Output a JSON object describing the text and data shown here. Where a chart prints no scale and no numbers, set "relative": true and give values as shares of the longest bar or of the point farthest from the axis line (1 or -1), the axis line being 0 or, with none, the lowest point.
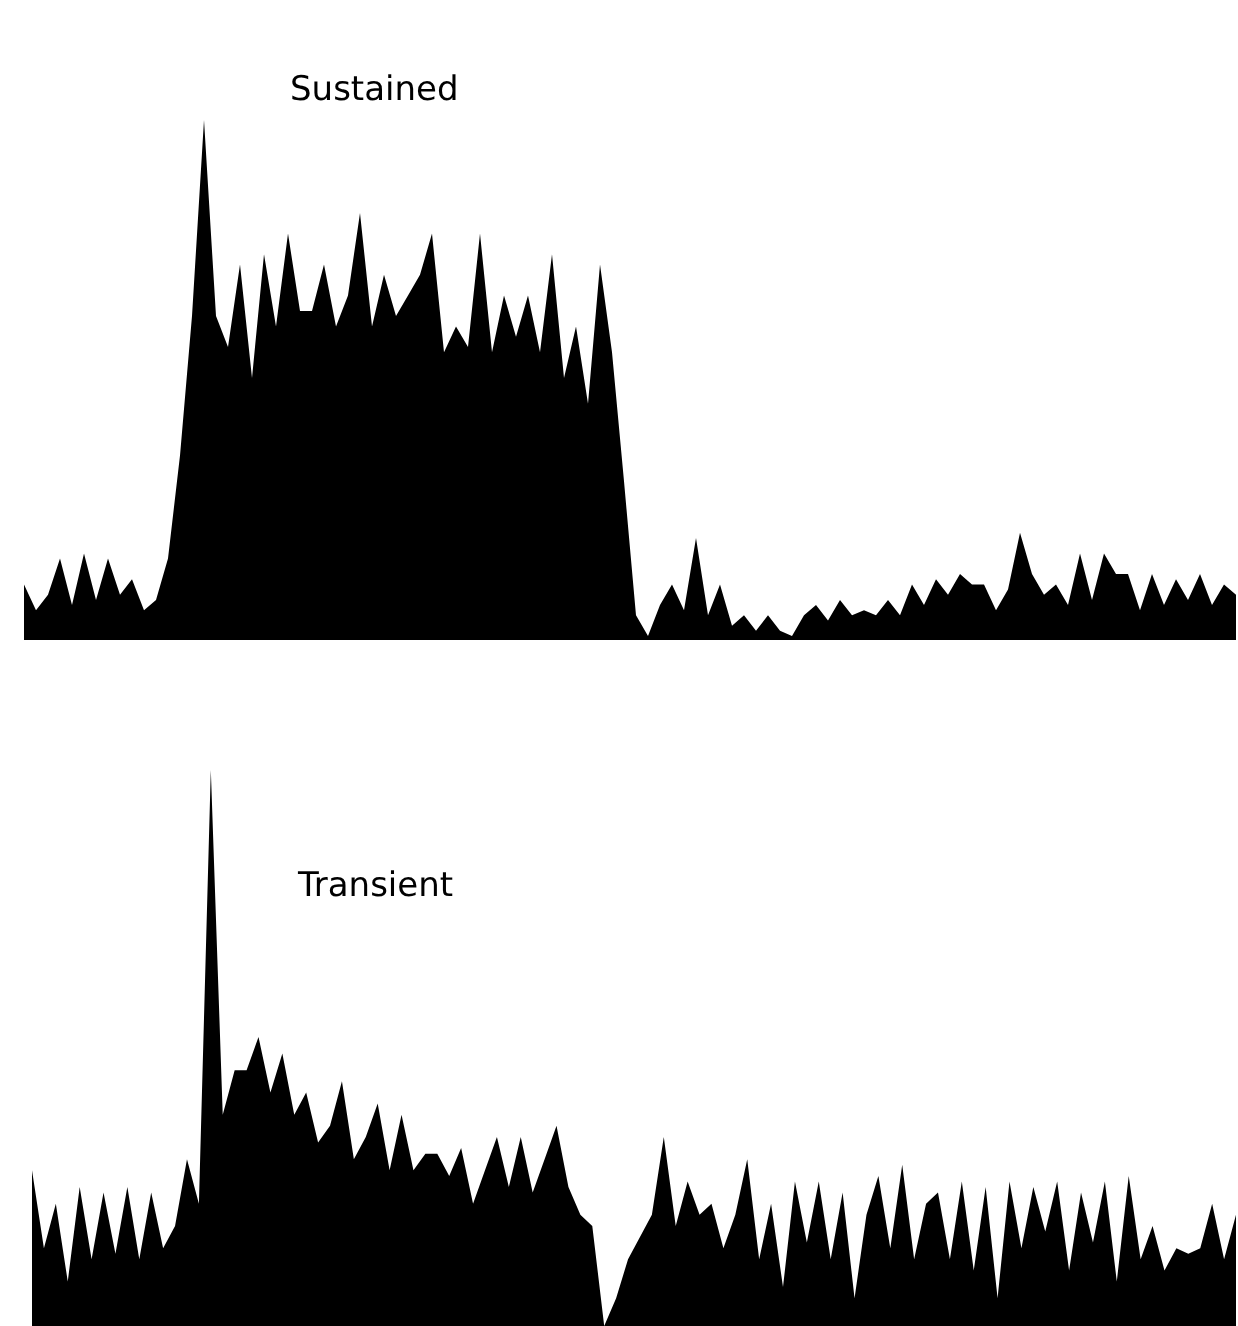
{
  "chart_data": [
    {
      "type": "area",
      "title": "Sustained",
      "relative": true,
      "legend": false,
      "categories": [
        null,
        null,
        null,
        null,
        null,
        null,
        null,
        null,
        null,
        null,
        null,
        null,
        null,
        null,
        null,
        null,
        null,
        null,
        null,
        null,
        null,
        null,
        null,
        null,
        null,
        null,
        null,
        null,
        null,
        null,
        null,
        null,
        null,
        null,
        null,
        null,
        null,
        null,
        null,
        null,
        null,
        null,
        null,
        null,
        null,
        null,
        null,
        null,
        null,
        null,
        null,
        null,
        null,
        null,
        null,
        null,
        null,
        null,
        null,
        null,
        null,
        null,
        null,
        null,
        null,
        null,
        null,
        null,
        null,
        null,
        null,
        null,
        null,
        null,
        null,
        null,
        null,
        null,
        null,
        null,
        null,
        null,
        null,
        null,
        null,
        null,
        null,
        null,
        null,
        null,
        null,
        null,
        null,
        null,
        null,
        null,
        null,
        null,
        null,
        null,
        null,
        null
      ],
      "series": [
        {
          "color": "#000000",
          "values": [
            0.1,
            0.05,
            0.08,
            0.15,
            0.06,
            0.16,
            0.07,
            0.15,
            0.08,
            0.11,
            0.05,
            0.07,
            0.15,
            0.35,
            0.62,
            1.0,
            0.62,
            0.56,
            0.72,
            0.5,
            0.74,
            0.6,
            0.78,
            0.63,
            0.63,
            0.72,
            0.6,
            0.66,
            0.82,
            0.6,
            0.7,
            0.62,
            0.66,
            0.7,
            0.78,
            0.55,
            0.6,
            0.56,
            0.78,
            0.55,
            0.66,
            0.58,
            0.66,
            0.55,
            0.74,
            0.5,
            0.6,
            0.45,
            0.72,
            0.55,
            0.3,
            0.04,
            0.0,
            0.06,
            0.1,
            0.05,
            0.19,
            0.04,
            0.1,
            0.02,
            0.04,
            0.01,
            0.04,
            0.01,
            0.0,
            0.04,
            0.06,
            0.03,
            0.07,
            0.04,
            0.05,
            0.04,
            0.07,
            0.04,
            0.1,
            0.06,
            0.11,
            0.08,
            0.12,
            0.1,
            0.1,
            0.05,
            0.09,
            0.2,
            0.12,
            0.08,
            0.1,
            0.06,
            0.16,
            0.07,
            0.16,
            0.12,
            0.12,
            0.05,
            0.12,
            0.06,
            0.11,
            0.07,
            0.12,
            0.06,
            0.1,
            0.08
          ]
        }
      ]
    },
    {
      "type": "area",
      "title": "Transient",
      "relative": true,
      "legend": false,
      "categories": [
        null,
        null,
        null,
        null,
        null,
        null,
        null,
        null,
        null,
        null,
        null,
        null,
        null,
        null,
        null,
        null,
        null,
        null,
        null,
        null,
        null,
        null,
        null,
        null,
        null,
        null,
        null,
        null,
        null,
        null,
        null,
        null,
        null,
        null,
        null,
        null,
        null,
        null,
        null,
        null,
        null,
        null,
        null,
        null,
        null,
        null,
        null,
        null,
        null,
        null,
        null,
        null,
        null,
        null,
        null,
        null,
        null,
        null,
        null,
        null,
        null,
        null,
        null,
        null,
        null,
        null,
        null,
        null,
        null,
        null,
        null,
        null,
        null,
        null,
        null,
        null,
        null,
        null,
        null,
        null,
        null,
        null,
        null,
        null,
        null,
        null,
        null,
        null,
        null,
        null,
        null,
        null,
        null,
        null,
        null,
        null,
        null,
        null,
        null,
        null,
        null,
        null
      ],
      "series": [
        {
          "color": "#000000",
          "values": [
            0.28,
            0.14,
            0.22,
            0.08,
            0.25,
            0.12,
            0.24,
            0.13,
            0.25,
            0.12,
            0.24,
            0.14,
            0.18,
            0.3,
            0.22,
            1.0,
            0.38,
            0.46,
            0.46,
            0.52,
            0.42,
            0.49,
            0.38,
            0.42,
            0.33,
            0.36,
            0.44,
            0.3,
            0.34,
            0.4,
            0.28,
            0.38,
            0.28,
            0.31,
            0.31,
            0.27,
            0.32,
            0.22,
            0.28,
            0.34,
            0.25,
            0.34,
            0.24,
            0.3,
            0.36,
            0.25,
            0.2,
            0.18,
            0.0,
            0.05,
            0.12,
            0.16,
            0.2,
            0.34,
            0.18,
            0.26,
            0.2,
            0.22,
            0.14,
            0.2,
            0.3,
            0.12,
            0.22,
            0.07,
            0.26,
            0.15,
            0.26,
            0.12,
            0.24,
            0.05,
            0.2,
            0.27,
            0.14,
            0.29,
            0.12,
            0.22,
            0.24,
            0.12,
            0.26,
            0.1,
            0.25,
            0.05,
            0.26,
            0.14,
            0.25,
            0.17,
            0.26,
            0.1,
            0.24,
            0.15,
            0.26,
            0.08,
            0.27,
            0.12,
            0.18,
            0.1,
            0.14,
            0.13,
            0.14,
            0.22,
            0.12,
            0.2
          ]
        }
      ]
    }
  ]
}
